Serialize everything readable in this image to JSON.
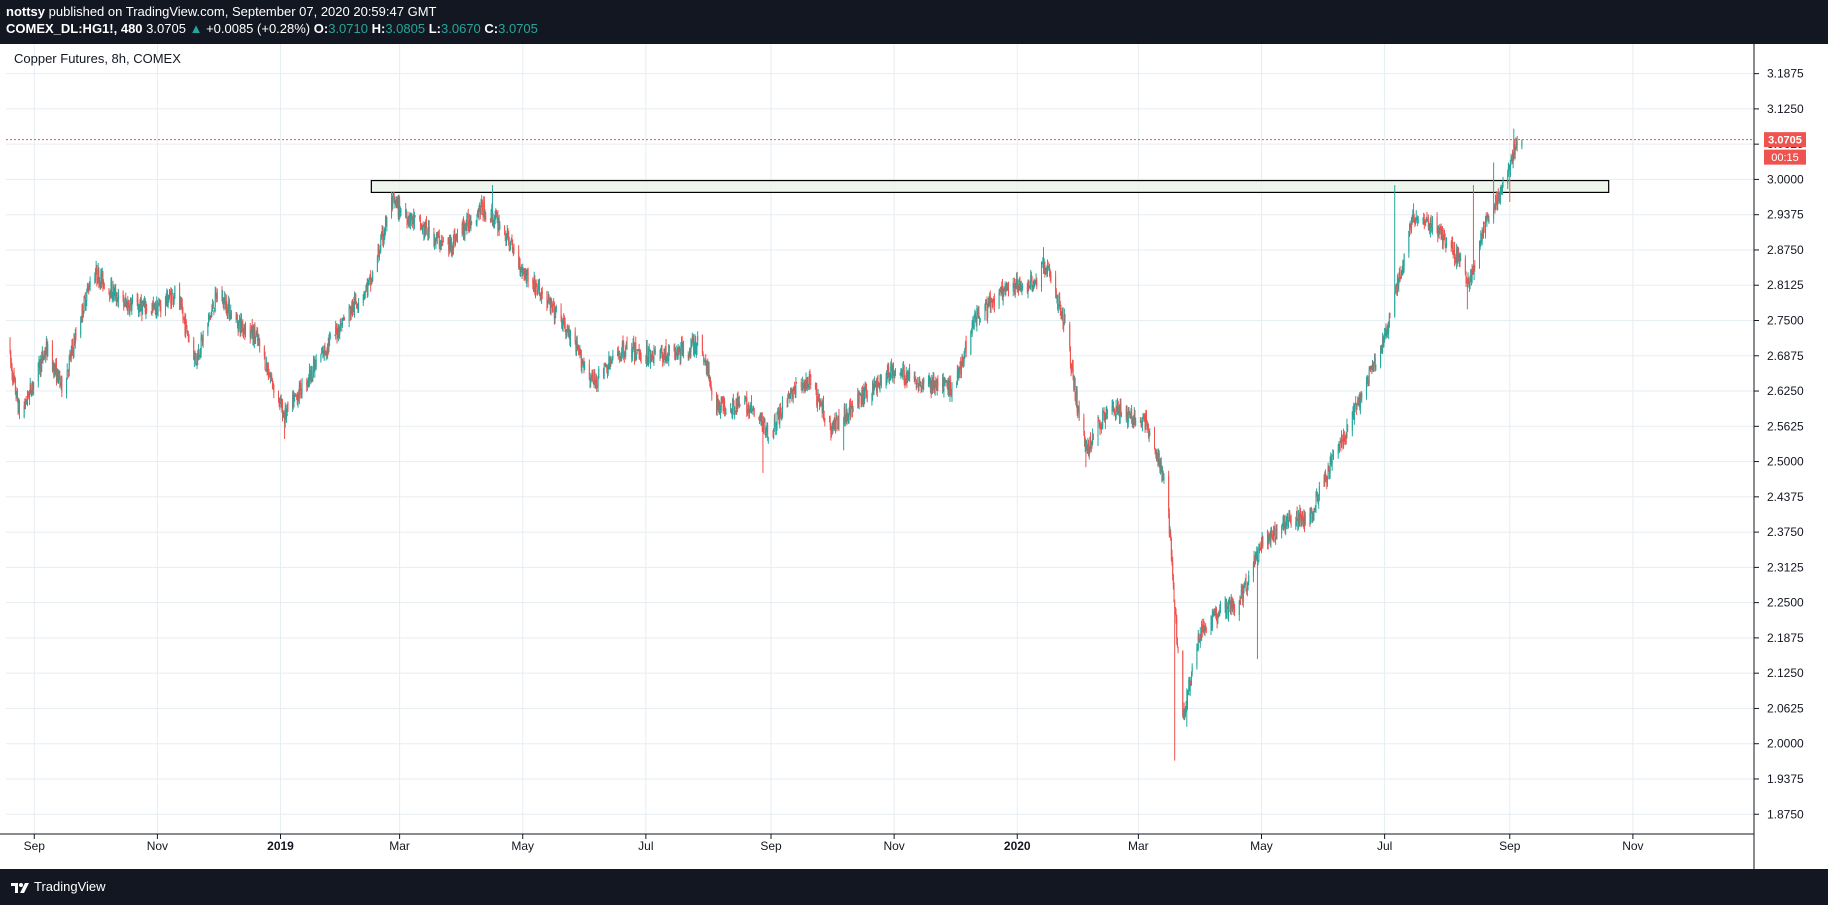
{
  "header": {
    "user": "nottsy",
    "published": "published on TradingView.com, September 07, 2020 20:59:47 GMT",
    "symbol": "COMEX_DL:HG1!, 480",
    "last": "3.0705",
    "arrow": "▲",
    "change": "+0.0085 (+0.28%)",
    "o_label": "O:",
    "o_val": "3.0710",
    "h_label": "H:",
    "h_val": "3.0805",
    "l_label": "L:",
    "l_val": "3.0670",
    "c_label": "C:",
    "c_val": "3.0705"
  },
  "footer": {
    "brand": "TradingView"
  },
  "colors": {
    "up": "#26a69a",
    "down": "#ef5350",
    "price_line": "#ef5350",
    "box_fill": "#e8f3e8",
    "box_stroke": "#000000",
    "grid": "#e6eef2",
    "header_bg": "#131722"
  },
  "chart_data": {
    "type": "candlestick",
    "title": "Copper Futures, 8h, COMEX",
    "ylim": [
      1.84,
      3.24
    ],
    "y_ticks": [
      "3.1875",
      "3.1250",
      "3.0625",
      "3.0000",
      "2.9375",
      "2.8750",
      "2.8125",
      "2.7500",
      "2.6875",
      "2.6250",
      "2.5625",
      "2.5000",
      "2.4375",
      "2.3750",
      "2.3125",
      "2.2500",
      "2.1875",
      "2.1250",
      "2.0625",
      "2.0000",
      "1.9375",
      "1.8750"
    ],
    "x_range": [
      "2018-08-18",
      "2020-12-31"
    ],
    "x_ticks": [
      {
        "label": "Sep",
        "date": "2018-09-01",
        "bold": false
      },
      {
        "label": "Nov",
        "date": "2018-11-01",
        "bold": false
      },
      {
        "label": "2019",
        "date": "2019-01-01",
        "bold": true
      },
      {
        "label": "Mar",
        "date": "2019-03-01",
        "bold": false
      },
      {
        "label": "May",
        "date": "2019-05-01",
        "bold": false
      },
      {
        "label": "Jul",
        "date": "2019-07-01",
        "bold": false
      },
      {
        "label": "Sep",
        "date": "2019-09-01",
        "bold": false
      },
      {
        "label": "Nov",
        "date": "2019-11-01",
        "bold": false
      },
      {
        "label": "2020",
        "date": "2020-01-01",
        "bold": true
      },
      {
        "label": "Mar",
        "date": "2020-03-01",
        "bold": false
      },
      {
        "label": "May",
        "date": "2020-05-01",
        "bold": false
      },
      {
        "label": "Jul",
        "date": "2020-07-01",
        "bold": false
      },
      {
        "label": "Sep",
        "date": "2020-09-01",
        "bold": false
      },
      {
        "label": "Nov",
        "date": "2020-11-01",
        "bold": false
      }
    ],
    "price_path": [
      [
        "2018-08-18",
        2.72
      ],
      [
        "2018-08-25",
        2.58
      ],
      [
        "2018-09-07",
        2.7
      ],
      [
        "2018-09-15",
        2.63
      ],
      [
        "2018-09-30",
        2.84
      ],
      [
        "2018-10-15",
        2.78
      ],
      [
        "2018-10-31",
        2.77
      ],
      [
        "2018-11-10",
        2.8
      ],
      [
        "2018-11-20",
        2.68
      ],
      [
        "2018-12-01",
        2.8
      ],
      [
        "2018-12-10",
        2.75
      ],
      [
        "2018-12-20",
        2.72
      ],
      [
        "2019-01-03",
        2.58
      ],
      [
        "2019-01-20",
        2.68
      ],
      [
        "2019-02-01",
        2.75
      ],
      [
        "2019-02-15",
        2.82
      ],
      [
        "2019-02-25",
        2.96
      ],
      [
        "2019-03-10",
        2.92
      ],
      [
        "2019-03-25",
        2.88
      ],
      [
        "2019-04-10",
        2.95
      ],
      [
        "2019-04-20",
        2.92
      ],
      [
        "2019-05-01",
        2.84
      ],
      [
        "2019-05-20",
        2.75
      ],
      [
        "2019-06-05",
        2.64
      ],
      [
        "2019-06-20",
        2.7
      ],
      [
        "2019-07-01",
        2.69
      ],
      [
        "2019-07-15",
        2.69
      ],
      [
        "2019-07-28",
        2.71
      ],
      [
        "2019-08-05",
        2.6
      ],
      [
        "2019-08-20",
        2.6
      ],
      [
        "2019-09-01",
        2.55
      ],
      [
        "2019-09-10",
        2.62
      ],
      [
        "2019-09-20",
        2.64
      ],
      [
        "2019-10-01",
        2.56
      ],
      [
        "2019-10-15",
        2.61
      ],
      [
        "2019-10-31",
        2.66
      ],
      [
        "2019-11-15",
        2.64
      ],
      [
        "2019-12-01",
        2.63
      ],
      [
        "2019-12-10",
        2.75
      ],
      [
        "2019-12-25",
        2.8
      ],
      [
        "2020-01-10",
        2.82
      ],
      [
        "2020-01-15",
        2.85
      ],
      [
        "2020-01-25",
        2.74
      ],
      [
        "2020-02-01",
        2.57
      ],
      [
        "2020-02-05",
        2.52
      ],
      [
        "2020-02-15",
        2.6
      ],
      [
        "2020-02-25",
        2.58
      ],
      [
        "2020-03-05",
        2.57
      ],
      [
        "2020-03-15",
        2.45
      ],
      [
        "2020-03-20",
        2.2
      ],
      [
        "2020-03-23",
        2.05
      ],
      [
        "2020-04-01",
        2.2
      ],
      [
        "2020-04-10",
        2.23
      ],
      [
        "2020-04-20",
        2.25
      ],
      [
        "2020-05-01",
        2.35
      ],
      [
        "2020-05-15",
        2.4
      ],
      [
        "2020-05-25",
        2.4
      ],
      [
        "2020-06-05",
        2.5
      ],
      [
        "2020-06-20",
        2.62
      ],
      [
        "2020-07-01",
        2.72
      ],
      [
        "2020-07-10",
        2.85
      ],
      [
        "2020-07-15",
        2.93
      ],
      [
        "2020-07-25",
        2.92
      ],
      [
        "2020-08-05",
        2.87
      ],
      [
        "2020-08-12",
        2.82
      ],
      [
        "2020-08-20",
        2.92
      ],
      [
        "2020-08-28",
        2.98
      ],
      [
        "2020-09-04",
        3.06
      ],
      [
        "2020-09-07",
        3.0705
      ]
    ],
    "dips": [
      [
        "2019-01-03",
        2.54
      ],
      [
        "2019-08-28",
        2.48
      ],
      [
        "2019-10-07",
        2.52
      ],
      [
        "2020-02-04",
        2.49
      ],
      [
        "2020-03-19",
        1.97
      ],
      [
        "2020-03-25",
        2.03
      ],
      [
        "2020-04-29",
        2.15
      ],
      [
        "2020-08-11",
        2.77
      ],
      [
        "2020-09-01",
        2.96
      ]
    ],
    "spikes": [
      [
        "2019-04-16",
        2.99
      ],
      [
        "2020-01-14",
        2.88
      ],
      [
        "2020-07-06",
        2.99
      ],
      [
        "2020-08-14",
        2.99
      ],
      [
        "2020-08-24",
        3.03
      ],
      [
        "2020-09-03",
        3.09
      ]
    ],
    "last_price": 3.0705,
    "last_price_label": "3.0705",
    "countdown_label": "00:15",
    "resistance_zone": {
      "from": "2019-02-15",
      "to": "2020-10-20",
      "low": 2.977,
      "high": 2.998
    }
  }
}
